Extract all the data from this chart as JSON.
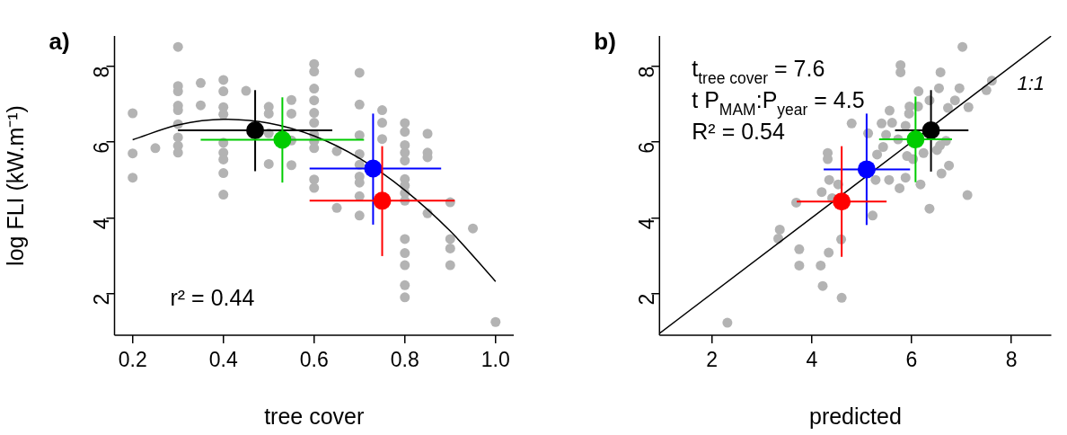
{
  "chart_data": [
    {
      "type": "scatter",
      "title": "a)",
      "xlabel": "tree cover",
      "ylabel": "log FLI (kW.m⁻¹)",
      "xlim": [
        0.16,
        1.04
      ],
      "ylim": [
        0.9,
        8.8
      ],
      "xticks": [
        0.2,
        0.4,
        0.6,
        0.8,
        {
          "value": 1,
          "label": "1.0"
        }
      ],
      "yticks": [
        2,
        4,
        6,
        8
      ],
      "marker": "circle",
      "legend": false,
      "series": [
        {
          "type": "scatter",
          "color": "#b3b3b3",
          "x": [
            0.2,
            0.2,
            0.2,
            0.25,
            0.3,
            0.3,
            0.3,
            0.3,
            0.3,
            0.3,
            0.3,
            0.3,
            0.3,
            0.35,
            0.35,
            0.4,
            0.4,
            0.4,
            0.4,
            0.4,
            0.4,
            0.4,
            0.4,
            0.4,
            0.45,
            0.5,
            0.5,
            0.5,
            0.5,
            0.55,
            0.55,
            0.55,
            0.55,
            0.6,
            0.6,
            0.6,
            0.6,
            0.6,
            0.6,
            0.6,
            0.6,
            0.6,
            0.6,
            0.6,
            0.65,
            0.65,
            0.7,
            0.7,
            0.7,
            0.7,
            0.7,
            0.7,
            0.7,
            0.7,
            0.7,
            0.75,
            0.75,
            0.75,
            0.8,
            0.8,
            0.8,
            0.8,
            0.8,
            0.8,
            0.8,
            0.8,
            0.8,
            0.8,
            0.8,
            0.8,
            0.8,
            0.8,
            0.85,
            0.85,
            0.85,
            0.85,
            0.9,
            0.9,
            0.9,
            0.9,
            0.95,
            1.0
          ],
          "values": [
            6.76,
            5.7,
            5.06,
            5.84,
            8.51,
            7.48,
            7.34,
            6.96,
            6.84,
            6.47,
            6.12,
            5.9,
            5.72,
            7.56,
            6.97,
            7.64,
            7.34,
            6.92,
            6.73,
            5.98,
            5.72,
            5.54,
            5.18,
            4.61,
            7.35,
            6.93,
            6.75,
            6.23,
            5.42,
            7.11,
            6.75,
            6.04,
            5.39,
            8.06,
            7.86,
            7.41,
            7.1,
            6.77,
            6.51,
            6.2,
            6.02,
            5.84,
            5.01,
            4.79,
            5.76,
            4.26,
            7.83,
            6.99,
            6.18,
            5.68,
            5.4,
            5.09,
            4.93,
            4.57,
            4.06,
            6.84,
            6.51,
            6.08,
            6.5,
            6.27,
            5.92,
            5.72,
            5.51,
            5.02,
            4.85,
            4.65,
            4.45,
            3.44,
            3.07,
            2.75,
            2.22,
            1.9,
            6.22,
            5.72,
            5.6,
            4.12,
            4.41,
            3.44,
            3.19,
            2.75,
            3.72,
            1.25
          ]
        },
        {
          "type": "line",
          "color": "#000000",
          "marker": "none",
          "x": [
            0.2,
            0.3,
            0.4,
            0.5,
            0.6,
            0.7,
            0.8,
            0.9,
            1.0
          ],
          "values": [
            6.06,
            6.45,
            6.6,
            6.5,
            6.16,
            5.57,
            4.73,
            3.65,
            2.32
          ]
        },
        {
          "type": "scatter",
          "color": "#000000",
          "x": [
            0.47
          ],
          "values": [
            6.31
          ],
          "errors": [
            [
              5.23,
              7.37
            ]
          ],
          "xerrors": [
            [
              0.3,
              0.64
            ]
          ]
        },
        {
          "type": "scatter",
          "color": "#00cc00",
          "x": [
            0.53
          ],
          "values": [
            6.06
          ],
          "errors": [
            [
              4.93,
              7.18
            ]
          ],
          "xerrors": [
            [
              0.35,
              0.71
            ]
          ]
        },
        {
          "type": "scatter",
          "color": "#0000ff",
          "x": [
            0.73
          ],
          "values": [
            5.3
          ],
          "errors": [
            [
              3.82,
              6.75
            ]
          ],
          "xerrors": [
            [
              0.59,
              0.88
            ]
          ]
        },
        {
          "type": "scatter",
          "color": "#ff0000",
          "x": [
            0.75
          ],
          "values": [
            4.45
          ],
          "errors": [
            [
              2.99,
              5.89
            ]
          ],
          "xerrors": [
            [
              0.59,
              0.91
            ]
          ]
        }
      ],
      "annotations": [
        "r² = 0.44"
      ]
    },
    {
      "type": "scatter",
      "title": "b)",
      "xlabel": "predicted",
      "xlim": [
        0.95,
        8.8
      ],
      "ylim": [
        0.9,
        8.8
      ],
      "xticks": [
        2,
        4,
        6,
        8
      ],
      "yticks": [
        2,
        4,
        6,
        8
      ],
      "marker": "circle",
      "legend": false,
      "series": [
        {
          "type": "scatter",
          "color": "#b3b3b3",
          "x": [
            2.31,
            7.02,
            5.78,
            5.78,
            6.58,
            7.61,
            7.5,
            6.96,
            6.14,
            6.55,
            6.87,
            6.73,
            7.14,
            5.96,
            6.13,
            6.36,
            5.56,
            5.95,
            4.8,
            5.4,
            5.61,
            5.88,
            5.13,
            5.49,
            5.73,
            5.43,
            5.31,
            4.32,
            4.32,
            5.91,
            6.24,
            6.51,
            6.69,
            6.75,
            6.6,
            6.18,
            5.88,
            5.76,
            5.55,
            5.28,
            4.53,
            4.35,
            4.2,
            4.41,
            3.69,
            7.12,
            6.36,
            5.22,
            3.36,
            3.33,
            4.59,
            3.75,
            4.34,
            3.75,
            4.18,
            4.22,
            4.6,
            6.03,
            6.57
          ],
          "values": [
            1.23,
            8.51,
            8.03,
            7.84,
            7.84,
            7.62,
            7.37,
            7.42,
            7.34,
            7.42,
            7.1,
            6.9,
            6.92,
            6.94,
            6.94,
            7.1,
            6.83,
            6.75,
            6.49,
            6.49,
            6.51,
            6.43,
            6.23,
            6.19,
            6.07,
            5.87,
            5.67,
            5.71,
            5.55,
            5.63,
            5.71,
            5.79,
            6.03,
            5.38,
            5.17,
            4.88,
            5.06,
            4.78,
            5.0,
            5.0,
            4.88,
            5.0,
            4.68,
            4.52,
            4.4,
            4.6,
            4.24,
            4.06,
            3.69,
            3.45,
            3.43,
            3.17,
            3.08,
            2.74,
            2.74,
            2.2,
            1.89,
            5.55,
            5.91
          ]
        },
        {
          "type": "line",
          "color": "#000000",
          "marker": "none",
          "x": [
            0.95,
            8.8
          ],
          "values": [
            0.95,
            8.8
          ]
        },
        {
          "type": "scatter",
          "color": "#000000",
          "x": [
            6.39
          ],
          "values": [
            6.31
          ],
          "errors": [
            [
              5.22,
              7.37
            ]
          ],
          "xerrors": [
            [
              5.67,
              7.14
            ]
          ]
        },
        {
          "type": "scatter",
          "color": "#00cc00",
          "x": [
            6.08
          ],
          "values": [
            6.07
          ],
          "errors": [
            [
              4.94,
              7.2
            ]
          ],
          "xerrors": [
            [
              5.35,
              6.81
            ]
          ]
        },
        {
          "type": "scatter",
          "color": "#0000ff",
          "x": [
            5.1
          ],
          "values": [
            5.28
          ],
          "errors": [
            [
              3.81,
              6.75
            ]
          ],
          "xerrors": [
            [
              4.24,
              5.97
            ]
          ]
        },
        {
          "type": "scatter",
          "color": "#ff0000",
          "x": [
            4.6
          ],
          "values": [
            4.43
          ],
          "errors": [
            [
              2.97,
              5.89
            ]
          ],
          "xerrors": [
            [
              3.7,
              5.5
            ]
          ]
        }
      ],
      "annotations": [
        "t$_{tree cover}$ = 7.6",
        "t P$_{MAM}$:P$_{year}$ = 4.5",
        "R² = 0.54",
        "1:1"
      ]
    }
  ]
}
